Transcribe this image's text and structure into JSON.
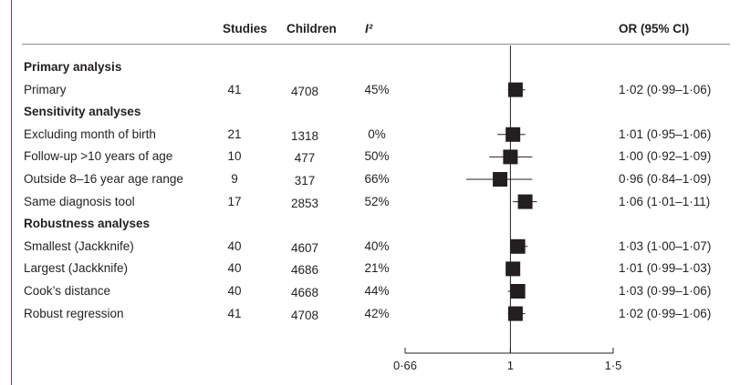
{
  "headers": {
    "studies": "Studies",
    "children": "Children",
    "i2": "I²",
    "or": "OR (95% CI)"
  },
  "rows": [
    {
      "label": "Primary analysis",
      "section": true
    },
    {
      "label": "Primary",
      "studies": "41",
      "children": "4708",
      "i2": "45%",
      "or_text": "1·02 (0·99–1·06)"
    },
    {
      "label": "Sensitivity analyses",
      "section": true
    },
    {
      "label": "Excluding month of birth",
      "studies": "21",
      "children": "1318",
      "i2": "0%",
      "or_text": "1·01 (0·95–1·06)"
    },
    {
      "label": "Follow-up >10 years of age",
      "studies": "10",
      "children": "477",
      "i2": "50%",
      "or_text": "1·00 (0·92–1·09)"
    },
    {
      "label": "Outside 8–16 year age range",
      "studies": "9",
      "children": "317",
      "i2": "66%",
      "or_text": "0·96 (0·84–1·09)"
    },
    {
      "label": "Same diagnosis tool",
      "studies": "17",
      "children": "2853",
      "i2": "52%",
      "or_text": "1·06 (1·01–1·11)"
    },
    {
      "label": "Robustness analyses",
      "section": true
    },
    {
      "label": "Smallest (Jackknife)",
      "studies": "40",
      "children": "4607",
      "i2": "40%",
      "or_text": "1·03 (1·00–1·07)"
    },
    {
      "label": "Largest (Jackknife)",
      "studies": "40",
      "children": "4686",
      "i2": "21%",
      "or_text": "1·01 (0·99–1·03)"
    },
    {
      "label": "Cook’s distance",
      "studies": "40",
      "children": "4668",
      "i2": "44%",
      "or_text": "1·03 (0·99–1·06)"
    },
    {
      "label": "Robust regression",
      "studies": "41",
      "children": "4708",
      "i2": "42%",
      "or_text": "1·02 (0·99–1·06)"
    }
  ],
  "chart_data": {
    "type": "forest",
    "xscale": "log",
    "xlim": [
      0.66,
      1.5
    ],
    "xticks": [
      0.66,
      1,
      1.5
    ],
    "xtick_labels": [
      "0·66",
      "1",
      "1·5"
    ],
    "reference_line": 1,
    "series": [
      {
        "label": "Primary",
        "or": 1.02,
        "lo": 0.99,
        "hi": 1.06
      },
      {
        "label": "Excluding month of birth",
        "or": 1.01,
        "lo": 0.95,
        "hi": 1.06
      },
      {
        "label": "Follow-up >10 years of age",
        "or": 1.0,
        "lo": 0.92,
        "hi": 1.09
      },
      {
        "label": "Outside 8–16 year age range",
        "or": 0.96,
        "lo": 0.84,
        "hi": 1.09
      },
      {
        "label": "Same diagnosis tool",
        "or": 1.06,
        "lo": 1.01,
        "hi": 1.11
      },
      {
        "label": "Smallest (Jackknife)",
        "or": 1.03,
        "lo": 1.0,
        "hi": 1.07
      },
      {
        "label": "Largest (Jackknife)",
        "or": 1.01,
        "lo": 0.99,
        "hi": 1.03
      },
      {
        "label": "Cook’s distance",
        "or": 1.03,
        "lo": 0.99,
        "hi": 1.06
      },
      {
        "label": "Robust regression",
        "or": 1.02,
        "lo": 0.99,
        "hi": 1.06
      }
    ],
    "colors": {
      "marker": "#231f20",
      "frame": "#c2185b"
    }
  }
}
